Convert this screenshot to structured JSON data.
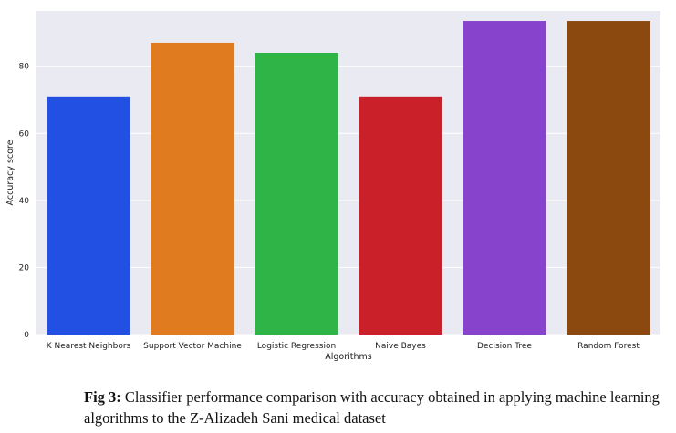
{
  "chart_data": {
    "type": "bar",
    "title": "",
    "xlabel": "Algorithms",
    "ylabel": "Accuracy score",
    "ylim": [
      0,
      96.5
    ],
    "yticks": [
      0,
      20,
      40,
      60,
      80
    ],
    "grid": true,
    "legend": "none",
    "categories": [
      "K Nearest Neighbors",
      "Support Vector Machine",
      "Logistic Regression",
      "Naive Bayes",
      "Decision Tree",
      "Random Forest"
    ],
    "values": [
      71,
      87,
      84,
      71,
      93.5,
      93.5
    ],
    "colors": [
      "#2250e3",
      "#e07b1f",
      "#2fb447",
      "#c9202a",
      "#8843cd",
      "#8b4910"
    ]
  },
  "caption": {
    "prefix": "Fig 3:",
    "text": " Classifier performance comparison with accuracy obtained in applying machine learning algorithms to the Z-Alizadeh Sani medical dataset"
  },
  "style": {
    "plot_background": "#eaeaf2",
    "grid_color": "#ffffff"
  }
}
